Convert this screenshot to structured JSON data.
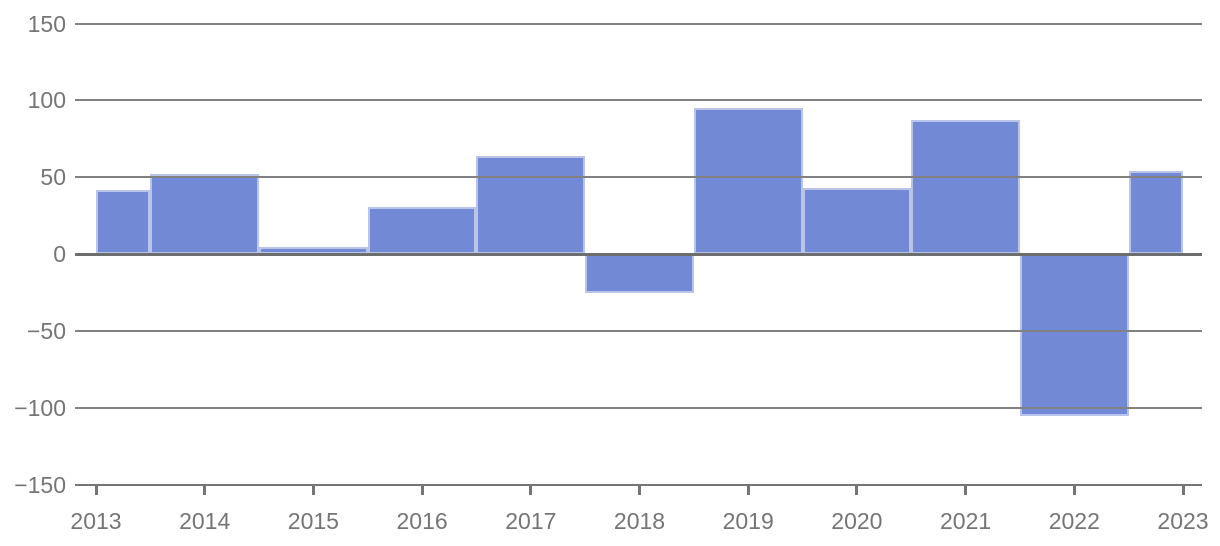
{
  "chart_data": {
    "type": "bar",
    "variant": "stepped-area-columns",
    "title": "",
    "xlabel": "",
    "ylabel": "",
    "categories": [
      "2013",
      "2014",
      "2015",
      "2016",
      "2017",
      "2018",
      "2019",
      "2020",
      "2021",
      "2022",
      "2023"
    ],
    "values": [
      42,
      52,
      5,
      31,
      64,
      -25,
      95,
      43,
      87,
      -105,
      54
    ],
    "ylim": [
      -150,
      150
    ],
    "ytick_step": 50,
    "ytick_labels": [
      "150",
      "100",
      "50",
      "0",
      "−50",
      "−100",
      "−150"
    ],
    "grid": true,
    "gridlines_over_bars": true,
    "legend": "none",
    "colors": {
      "series": "#7289d6",
      "step_outline": "rgba(255,255,255,0.5)",
      "gridline": "#818181",
      "zero_line": "#6d6d6d",
      "baseline": "#757575",
      "axis_text": "#757575",
      "background": "#ffffff"
    }
  }
}
